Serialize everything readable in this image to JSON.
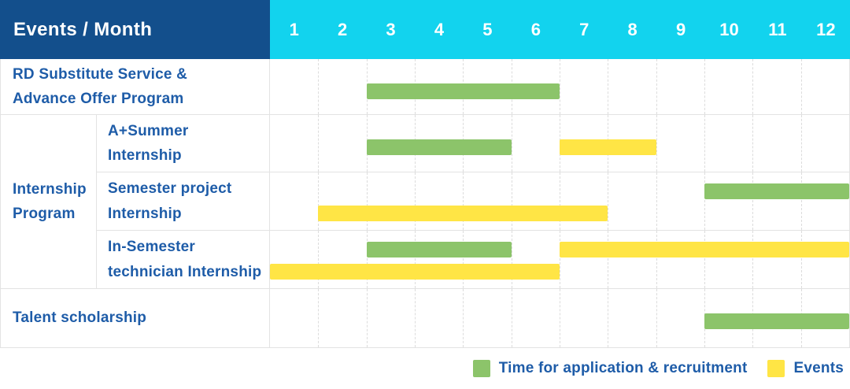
{
  "colors": {
    "header_bg": "#134F8C",
    "month_bg": "#12D3EE",
    "bar_green": "#8CC46A",
    "bar_yellow": "#FFE545",
    "label_blue": "#1E5CA8",
    "grid": "#E3E3E3"
  },
  "chart_data": {
    "type": "bar",
    "subtype": "gantt-schedule (horizontal month-range bars)",
    "header_label": "Events / Month",
    "months": [
      "1",
      "2",
      "3",
      "4",
      "5",
      "6",
      "7",
      "8",
      "9",
      "10",
      "11",
      "12"
    ],
    "x_range": [
      1,
      12
    ],
    "grid": "dashed vertical month separators",
    "group_label": "Internship\nProgram",
    "rows": [
      {
        "label": "RD Substitute Service &\nAdvance Offer Program",
        "group": null,
        "bars": [
          {
            "series": "Time for application & recruitment",
            "start_month": 3,
            "end_month": 6,
            "lane": "mid"
          }
        ]
      },
      {
        "label": "A+Summer\nInternship",
        "group": "Internship Program",
        "bars": [
          {
            "series": "Time for application & recruitment",
            "start_month": 3,
            "end_month": 5,
            "lane": "mid"
          },
          {
            "series": "Events",
            "start_month": 7,
            "end_month": 8,
            "lane": "mid"
          }
        ]
      },
      {
        "label": "Semester project\nInternship",
        "group": "Internship Program",
        "bars": [
          {
            "series": "Time for application & recruitment",
            "start_month": 10,
            "end_month": 12,
            "lane": "a"
          },
          {
            "series": "Events",
            "start_month": 2,
            "end_month": 7,
            "lane": "b"
          }
        ]
      },
      {
        "label": "In-Semester\ntechnician Internship",
        "group": "Internship Program",
        "bars": [
          {
            "series": "Time for application & recruitment",
            "start_month": 3,
            "end_month": 5,
            "lane": "a"
          },
          {
            "series": "Events",
            "start_month": 7,
            "end_month": 12,
            "lane": "a"
          },
          {
            "series": "Events",
            "start_month": 1,
            "end_month": 6,
            "lane": "b"
          }
        ]
      },
      {
        "label": "Talent scholarship",
        "group": null,
        "bars": [
          {
            "series": "Time for application & recruitment",
            "start_month": 10,
            "end_month": 12,
            "lane": "mid"
          }
        ]
      }
    ],
    "legend": [
      {
        "series": "Time for application & recruitment",
        "color": "#8CC46A"
      },
      {
        "series": "Events",
        "color": "#FFE545"
      }
    ],
    "legend_position": "bottom-right"
  }
}
